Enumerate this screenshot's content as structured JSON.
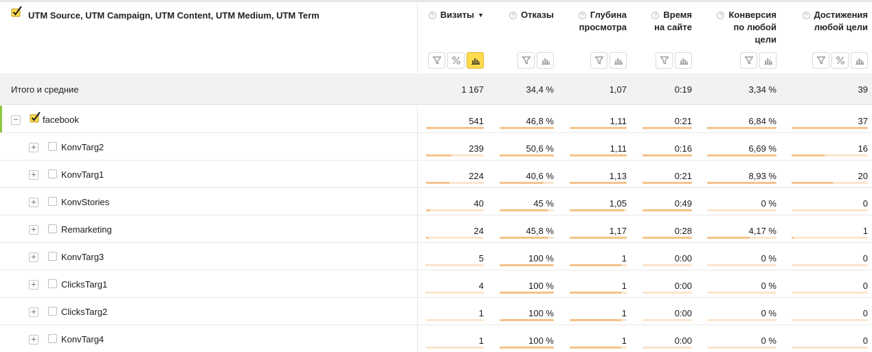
{
  "dimension_header": {
    "checked": true,
    "title": "UTM Source, UTM Campaign, UTM Content, UTM Medium, UTM Term"
  },
  "metrics": [
    {
      "key": "visits",
      "lines": [
        "Визиты"
      ],
      "sorted_desc": true,
      "sort_glyph": "▼",
      "buttons": [
        "filter-icon",
        "percent-icon",
        "chart-bars-icon"
      ],
      "active_button": "chart-bars-icon"
    },
    {
      "key": "bounce",
      "lines": [
        "Отказы"
      ],
      "buttons": [
        "filter-icon",
        "chart-bars-icon"
      ]
    },
    {
      "key": "depth",
      "lines": [
        "Глубина",
        "просмотра"
      ],
      "buttons": [
        "filter-icon",
        "chart-bars-icon"
      ]
    },
    {
      "key": "time",
      "lines": [
        "Время",
        "на сайте"
      ],
      "buttons": [
        "filter-icon",
        "chart-bars-icon"
      ]
    },
    {
      "key": "conversion",
      "lines": [
        "Конверсия",
        "по любой",
        "цели"
      ],
      "buttons": [
        "filter-icon",
        "chart-bars-icon"
      ]
    },
    {
      "key": "goals",
      "lines": [
        "Достижения",
        "любой цели"
      ],
      "buttons": [
        "filter-icon",
        "percent-icon",
        "chart-bars-icon"
      ]
    }
  ],
  "totals": {
    "label": "Итого и средние",
    "values": [
      "1 167",
      "34,4 %",
      "1,07",
      "0:19",
      "3,34 %",
      "39"
    ]
  },
  "rows": [
    {
      "label": "facebook",
      "level": 0,
      "expanded": true,
      "checked": true,
      "selected": true,
      "expander": "−",
      "values": [
        "541",
        "46,8 %",
        "1,11",
        "0:21",
        "6,84 %",
        "37"
      ],
      "fractions": [
        1.0,
        1.0,
        1.0,
        1.0,
        1.0,
        1.0
      ]
    },
    {
      "label": "KonvTarg2",
      "level": 1,
      "expander": "+",
      "values": [
        "239",
        "50,6 %",
        "1,11",
        "0:16",
        "6,69 %",
        "16"
      ],
      "fractions": [
        0.44,
        1.0,
        1.0,
        1.0,
        1.0,
        0.43
      ]
    },
    {
      "label": "KonvTarg1",
      "level": 1,
      "expander": "+",
      "values": [
        "224",
        "40,6 %",
        "1,13",
        "0:21",
        "8,93 %",
        "20"
      ],
      "fractions": [
        0.41,
        0.8,
        1.0,
        1.0,
        1.0,
        0.54
      ]
    },
    {
      "label": "KonvStories",
      "level": 1,
      "expander": "+",
      "values": [
        "40",
        "45 %",
        "1,05",
        "0:49",
        "0 %",
        "0"
      ],
      "fractions": [
        0.07,
        0.89,
        0.95,
        1.0,
        0.0,
        0.0
      ]
    },
    {
      "label": "Remarketing",
      "level": 1,
      "expander": "+",
      "values": [
        "24",
        "45,8 %",
        "1,17",
        "0:28",
        "4,17 %",
        "1"
      ],
      "fractions": [
        0.04,
        0.9,
        1.0,
        1.0,
        0.61,
        0.03
      ]
    },
    {
      "label": "KonvTarg3",
      "level": 1,
      "expander": "+",
      "values": [
        "5",
        "100 %",
        "1",
        "0:00",
        "0 %",
        "0"
      ],
      "fractions": [
        0.01,
        1.0,
        0.9,
        0.0,
        0.0,
        0.0
      ]
    },
    {
      "label": "ClicksTarg1",
      "level": 1,
      "expander": "+",
      "values": [
        "4",
        "100 %",
        "1",
        "0:00",
        "0 %",
        "0"
      ],
      "fractions": [
        0.01,
        1.0,
        0.9,
        0.0,
        0.0,
        0.0
      ]
    },
    {
      "label": "ClicksTarg2",
      "level": 1,
      "expander": "+",
      "values": [
        "1",
        "100 %",
        "1",
        "0:00",
        "0 %",
        "0"
      ],
      "fractions": [
        0.0,
        1.0,
        0.9,
        0.0,
        0.0,
        0.0
      ]
    },
    {
      "label": "KonvTarg4",
      "level": 1,
      "expander": "+",
      "values": [
        "1",
        "100 %",
        "1",
        "0:00",
        "0 %",
        "0"
      ],
      "fractions": [
        0.0,
        1.0,
        0.9,
        0.0,
        0.0,
        0.0
      ]
    }
  ],
  "colors": {
    "bar_fill": "#f5c28a",
    "bar_track": "#fbe5cc",
    "selected_marker": "#8cc63f",
    "active_button": "#ffdb4d",
    "checkbox_mark": "#1a1a1a",
    "checkbox_bg": "#ffdb4d",
    "total_row_bg": "#f2f2f2"
  }
}
